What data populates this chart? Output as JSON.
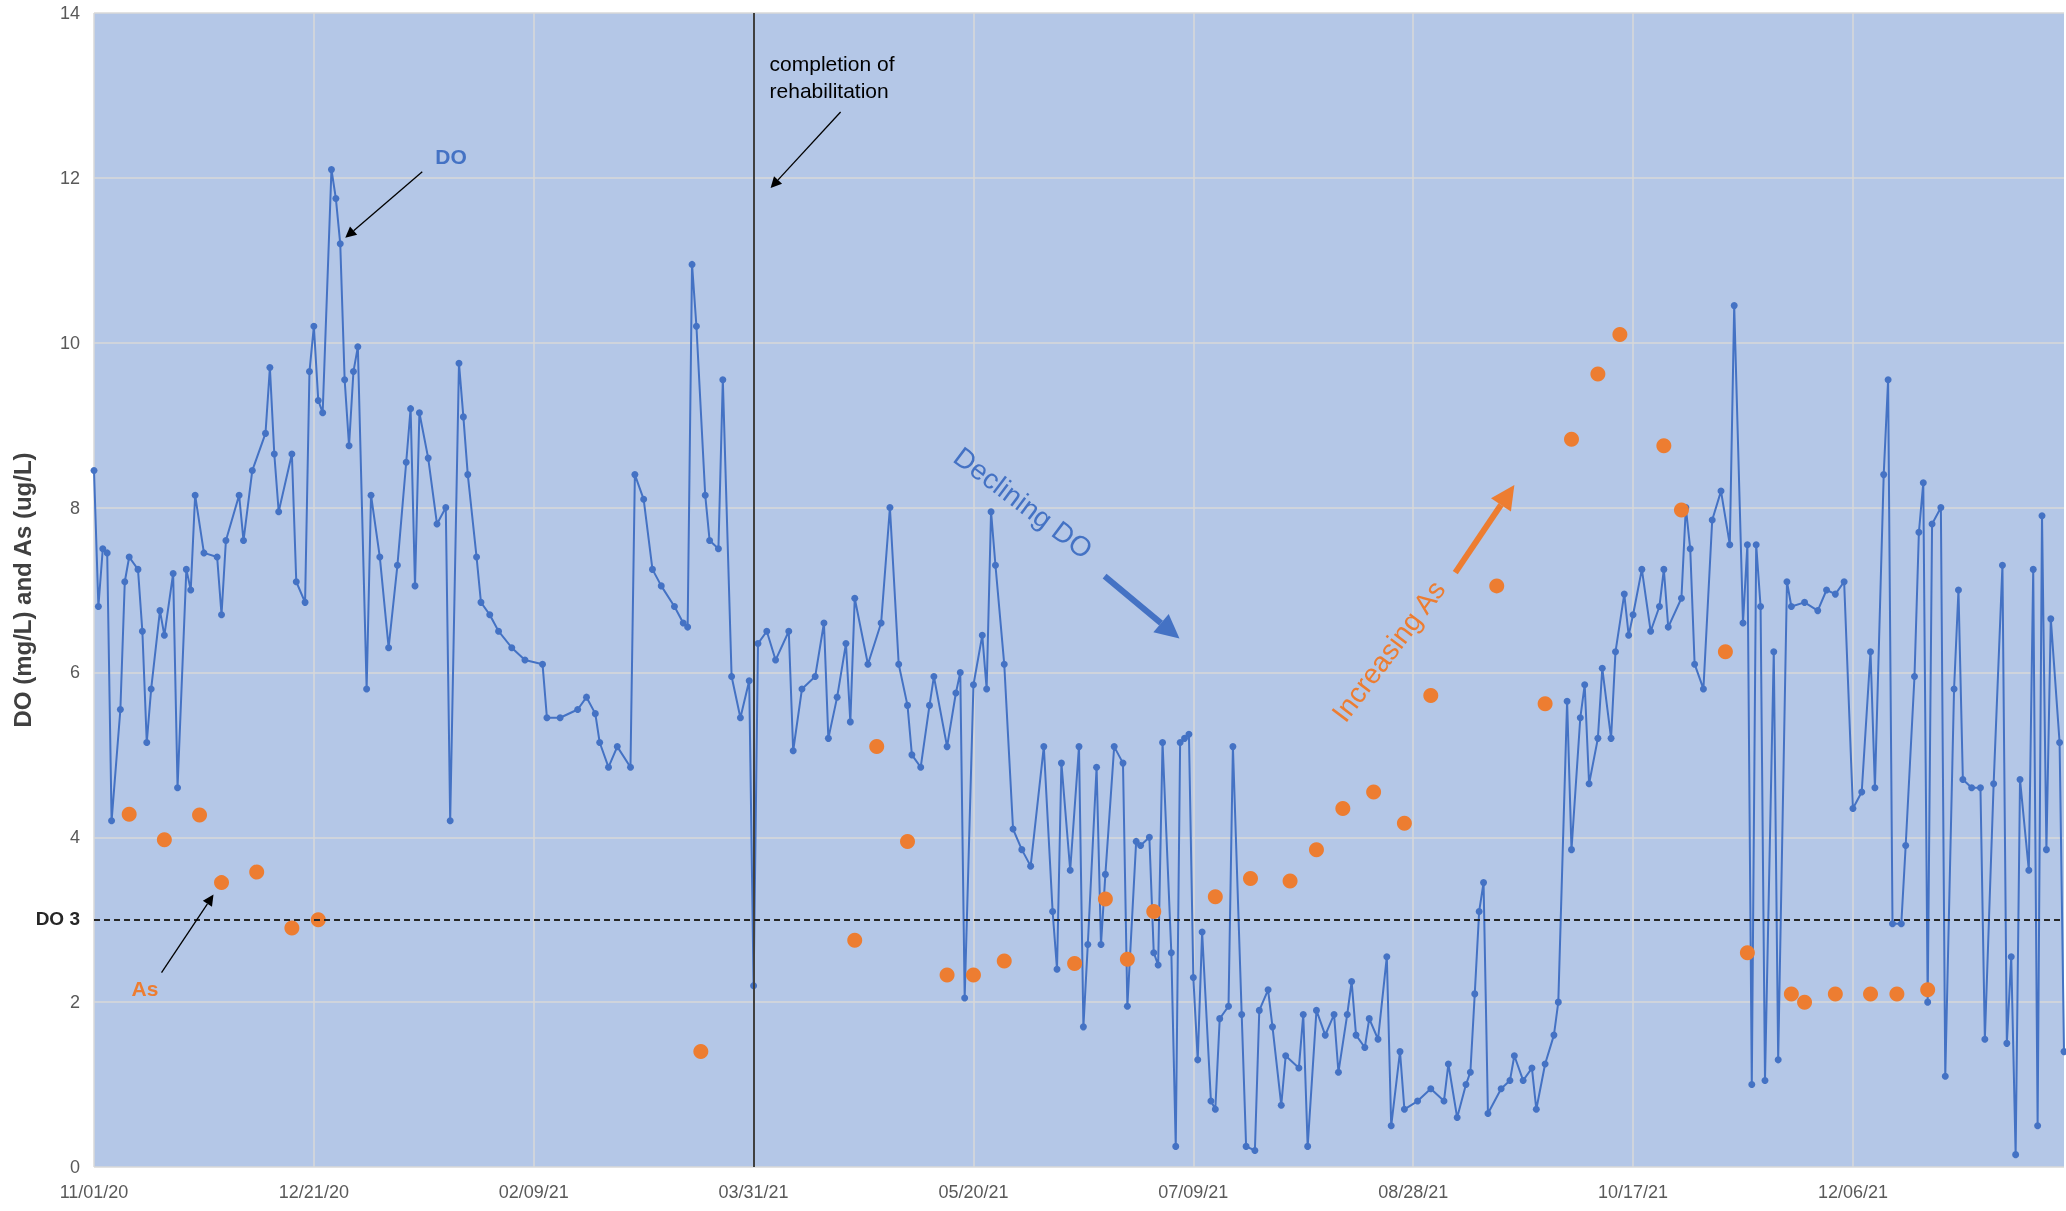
{
  "chart_data": {
    "type": "line",
    "ylabel": "DO (mg/L) and As (ug/L)",
    "xlim": [
      "2020-11-01",
      "2022-01-23"
    ],
    "ylim": [
      0,
      14
    ],
    "yticks": [
      0,
      2,
      4,
      6,
      8,
      10,
      12,
      14
    ],
    "xticks": [
      {
        "value": "2020-11-01",
        "label": "11/01/20"
      },
      {
        "value": "2020-12-21",
        "label": "12/21/20"
      },
      {
        "value": "2021-02-09",
        "label": "02/09/21"
      },
      {
        "value": "2021-03-31",
        "label": "03/31/21"
      },
      {
        "value": "2021-05-20",
        "label": "05/20/21"
      },
      {
        "value": "2021-07-09",
        "label": "07/09/21"
      },
      {
        "value": "2021-08-28",
        "label": "08/28/21"
      },
      {
        "value": "2021-10-17",
        "label": "10/17/21"
      },
      {
        "value": "2021-12-06",
        "label": "12/06/21"
      }
    ],
    "grid": true,
    "marker": "circle",
    "series": [
      {
        "name": "DO",
        "type": "line",
        "color": "#4472c4",
        "x": [
          "2020-11-01",
          "2020-11-02",
          "2020-11-03",
          "2020-11-04",
          "2020-11-05",
          "2020-11-07",
          "2020-11-08",
          "2020-11-09",
          "2020-11-11",
          "2020-11-12",
          "2020-11-13",
          "2020-11-14",
          "2020-11-16",
          "2020-11-17",
          "2020-11-19",
          "2020-11-20",
          "2020-11-22",
          "2020-11-23",
          "2020-11-24",
          "2020-11-26",
          "2020-11-29",
          "2020-11-30",
          "2020-12-01",
          "2020-12-04",
          "2020-12-05",
          "2020-12-07",
          "2020-12-10",
          "2020-12-11",
          "2020-12-12",
          "2020-12-13",
          "2020-12-16",
          "2020-12-17",
          "2020-12-19",
          "2020-12-20",
          "2020-12-21",
          "2020-12-22",
          "2020-12-23",
          "2020-12-25",
          "2020-12-26",
          "2020-12-27",
          "2020-12-28",
          "2020-12-29",
          "2020-12-30",
          "2020-12-31",
          "2021-01-02",
          "2021-01-03",
          "2021-01-05",
          "2021-01-07",
          "2021-01-09",
          "2021-01-11",
          "2021-01-12",
          "2021-01-13",
          "2021-01-14",
          "2021-01-16",
          "2021-01-18",
          "2021-01-20",
          "2021-01-21",
          "2021-01-23",
          "2021-01-24",
          "2021-01-25",
          "2021-01-27",
          "2021-01-28",
          "2021-01-30",
          "2021-02-01",
          "2021-02-04",
          "2021-02-07",
          "2021-02-11",
          "2021-02-12",
          "2021-02-15",
          "2021-02-19",
          "2021-02-21",
          "2021-02-23",
          "2021-02-24",
          "2021-02-26",
          "2021-02-28",
          "2021-03-03",
          "2021-03-04",
          "2021-03-06",
          "2021-03-08",
          "2021-03-10",
          "2021-03-13",
          "2021-03-15",
          "2021-03-16",
          "2021-03-17",
          "2021-03-18",
          "2021-03-20",
          "2021-03-21",
          "2021-03-23",
          "2021-03-24",
          "2021-03-26",
          "2021-03-28",
          "2021-03-30",
          "2021-03-31",
          "2021-04-01",
          "2021-04-03",
          "2021-04-05",
          "2021-04-08",
          "2021-04-09",
          "2021-04-11",
          "2021-04-14",
          "2021-04-16",
          "2021-04-17",
          "2021-04-19",
          "2021-04-21",
          "2021-04-22",
          "2021-04-23",
          "2021-04-26",
          "2021-04-29",
          "2021-05-01",
          "2021-05-03",
          "2021-05-05",
          "2021-05-06",
          "2021-05-08",
          "2021-05-10",
          "2021-05-11",
          "2021-05-14",
          "2021-05-16",
          "2021-05-17",
          "2021-05-18",
          "2021-05-20",
          "2021-05-22",
          "2021-05-23",
          "2021-05-24",
          "2021-05-25",
          "2021-05-27",
          "2021-05-29",
          "2021-05-31",
          "2021-06-02",
          "2021-06-05",
          "2021-06-07",
          "2021-06-08",
          "2021-06-09",
          "2021-06-11",
          "2021-06-13",
          "2021-06-14",
          "2021-06-15",
          "2021-06-17",
          "2021-06-18",
          "2021-06-19",
          "2021-06-21",
          "2021-06-23",
          "2021-06-24",
          "2021-06-26",
          "2021-06-27",
          "2021-06-29",
          "2021-06-30",
          "2021-07-01",
          "2021-07-02",
          "2021-07-04",
          "2021-07-05",
          "2021-07-06",
          "2021-07-07",
          "2021-07-08",
          "2021-07-09",
          "2021-07-10",
          "2021-07-11",
          "2021-07-13",
          "2021-07-14",
          "2021-07-15",
          "2021-07-17",
          "2021-07-18",
          "2021-07-20",
          "2021-07-21",
          "2021-07-23",
          "2021-07-24",
          "2021-07-26",
          "2021-07-27",
          "2021-07-29",
          "2021-07-30",
          "2021-08-02",
          "2021-08-03",
          "2021-08-04",
          "2021-08-06",
          "2021-08-08",
          "2021-08-10",
          "2021-08-11",
          "2021-08-13",
          "2021-08-14",
          "2021-08-15",
          "2021-08-17",
          "2021-08-18",
          "2021-08-20",
          "2021-08-22",
          "2021-08-23",
          "2021-08-25",
          "2021-08-26",
          "2021-08-29",
          "2021-09-01",
          "2021-09-04",
          "2021-09-05",
          "2021-09-07",
          "2021-09-09",
          "2021-09-10",
          "2021-09-11",
          "2021-09-12",
          "2021-09-13",
          "2021-09-14",
          "2021-09-17",
          "2021-09-19",
          "2021-09-20",
          "2021-09-22",
          "2021-09-24",
          "2021-09-25",
          "2021-09-27",
          "2021-09-29",
          "2021-09-30",
          "2021-10-02",
          "2021-10-03",
          "2021-10-05",
          "2021-10-06",
          "2021-10-07",
          "2021-10-09",
          "2021-10-10",
          "2021-10-12",
          "2021-10-13",
          "2021-10-15",
          "2021-10-16",
          "2021-10-17",
          "2021-10-19",
          "2021-10-21",
          "2021-10-23",
          "2021-10-24",
          "2021-10-25",
          "2021-10-28",
          "2021-10-29",
          "2021-10-30",
          "2021-10-31",
          "2021-11-02",
          "2021-11-04",
          "2021-11-06",
          "2021-11-08",
          "2021-11-09",
          "2021-11-11",
          "2021-11-12",
          "2021-11-13",
          "2021-11-14",
          "2021-11-15",
          "2021-11-16",
          "2021-11-18",
          "2021-11-19",
          "2021-11-21",
          "2021-11-22",
          "2021-11-25",
          "2021-11-28",
          "2021-11-30",
          "2021-12-02",
          "2021-12-04",
          "2021-12-06",
          "2021-12-08",
          "2021-12-10",
          "2021-12-11",
          "2021-12-13",
          "2021-12-14",
          "2021-12-15",
          "2021-12-17",
          "2021-12-18",
          "2021-12-20",
          "2021-12-21",
          "2021-12-22",
          "2021-12-23",
          "2021-12-24",
          "2021-12-26",
          "2021-12-27",
          "2021-12-29",
          "2021-12-30",
          "2021-12-31",
          "2022-01-02",
          "2022-01-04",
          "2022-01-05",
          "2022-01-07",
          "2022-01-09",
          "2022-01-10",
          "2022-01-11",
          "2022-01-12",
          "2022-01-13",
          "2022-01-15",
          "2022-01-16",
          "2022-01-17",
          "2022-01-18",
          "2022-01-19",
          "2022-01-20",
          "2022-01-22",
          "2022-01-23"
        ],
        "values": [
          8.45,
          6.8,
          7.5,
          7.45,
          4.2,
          5.55,
          7.1,
          7.4,
          7.25,
          6.5,
          5.15,
          5.8,
          6.75,
          6.45,
          7.2,
          4.6,
          7.25,
          7.0,
          8.15,
          7.45,
          7.4,
          6.7,
          7.6,
          8.15,
          7.6,
          8.45,
          8.9,
          9.7,
          8.65,
          7.95,
          8.65,
          7.1,
          6.85,
          9.65,
          10.2,
          9.3,
          9.15,
          12.1,
          11.75,
          11.2,
          9.55,
          8.75,
          9.65,
          9.95,
          5.8,
          8.15,
          7.4,
          6.3,
          7.3,
          8.55,
          9.2,
          7.05,
          9.15,
          8.6,
          7.8,
          8.0,
          4.2,
          9.75,
          9.1,
          8.4,
          7.4,
          6.85,
          6.7,
          6.5,
          6.3,
          6.15,
          6.1,
          5.45,
          5.45,
          5.55,
          5.7,
          5.5,
          5.15,
          4.85,
          5.1,
          4.85,
          8.4,
          8.1,
          7.25,
          7.05,
          6.8,
          6.6,
          6.55,
          10.95,
          10.2,
          8.15,
          7.6,
          7.5,
          9.55,
          5.95,
          5.45,
          5.9,
          2.2,
          6.35,
          6.5,
          6.15,
          6.5,
          5.05,
          5.8,
          5.95,
          6.6,
          5.2,
          5.7,
          6.35,
          5.4,
          6.9,
          6.1,
          6.6,
          8.0,
          6.1,
          5.6,
          5.0,
          4.85,
          5.6,
          5.95,
          5.1,
          5.75,
          6.0,
          2.05,
          5.85,
          6.45,
          5.8,
          7.95,
          7.3,
          6.1,
          4.1,
          3.85,
          3.65,
          5.1,
          3.1,
          2.4,
          4.9,
          3.6,
          5.1,
          1.7,
          2.7,
          4.85,
          2.7,
          3.55,
          5.1,
          4.9,
          1.95,
          3.95,
          3.9,
          4.0,
          2.6,
          2.45,
          5.15,
          2.6,
          0.25,
          5.15,
          5.2,
          5.25,
          2.3,
          1.3,
          2.85,
          0.8,
          0.7,
          1.8,
          1.95,
          5.1,
          1.85,
          0.25,
          0.2,
          1.9,
          2.15,
          1.7,
          0.75,
          1.35,
          1.2,
          1.85,
          0.25,
          1.9,
          1.6,
          1.85,
          1.15,
          1.85,
          2.25,
          1.6,
          1.45,
          1.8,
          1.55,
          2.55,
          0.5,
          1.4,
          0.7,
          0.8,
          0.95,
          0.8,
          1.25,
          0.6,
          1.0,
          1.15,
          2.1,
          3.1,
          3.45,
          0.65,
          0.95,
          1.05,
          1.35,
          1.05,
          1.2,
          0.7,
          1.25,
          1.6,
          2.0,
          5.65,
          3.85,
          5.45,
          5.85,
          4.65,
          5.2,
          6.05,
          5.2,
          6.25,
          6.95,
          6.45,
          6.7,
          7.25,
          6.5,
          6.8,
          7.25,
          6.55,
          6.9,
          8.0,
          7.5,
          6.1,
          5.8,
          7.85,
          8.2,
          7.55,
          10.45,
          6.6,
          7.55,
          1.0,
          7.55,
          6.8,
          1.05,
          6.25,
          1.3,
          7.1,
          6.8,
          6.85,
          6.75,
          7.0,
          6.95,
          7.1,
          4.35,
          4.55,
          6.25,
          4.6,
          8.4,
          9.55,
          2.95,
          2.95,
          3.9,
          5.95,
          7.7,
          8.3,
          2.0,
          7.8,
          8.0,
          1.1,
          5.8,
          7.0,
          4.7,
          4.6,
          4.6,
          1.55,
          4.65,
          7.3,
          1.5,
          2.55,
          0.15,
          4.7,
          3.6,
          7.25,
          0.5,
          7.9,
          3.85,
          6.65,
          5.15,
          1.4
        ]
      },
      {
        "name": "As",
        "type": "scatter",
        "color": "#ed7d31",
        "x": [
          "2020-11-09",
          "2020-11-17",
          "2020-11-25",
          "2020-11-30",
          "2020-12-08",
          "2020-12-16",
          "2020-12-22",
          "2021-03-19",
          "2021-04-23",
          "2021-04-28",
          "2021-05-05",
          "2021-05-14",
          "2021-05-20",
          "2021-05-27",
          "2021-06-12",
          "2021-06-19",
          "2021-06-24",
          "2021-06-30",
          "2021-07-14",
          "2021-07-22",
          "2021-07-31",
          "2021-08-06",
          "2021-08-12",
          "2021-08-19",
          "2021-08-26",
          "2021-09-01",
          "2021-09-16",
          "2021-09-27",
          "2021-10-03",
          "2021-10-09",
          "2021-10-14",
          "2021-10-24",
          "2021-10-28",
          "2021-11-07",
          "2021-11-12",
          "2021-11-22",
          "2021-11-25",
          "2021-12-02",
          "2021-12-10",
          "2021-12-16",
          "2021-12-23"
        ],
        "values": [
          4.28,
          3.97,
          4.27,
          3.45,
          3.58,
          2.9,
          3.0,
          1.4,
          2.75,
          5.1,
          3.95,
          2.33,
          2.33,
          2.5,
          2.47,
          3.25,
          2.52,
          3.1,
          3.28,
          3.5,
          3.47,
          3.85,
          4.35,
          4.55,
          4.17,
          5.72,
          7.05,
          5.62,
          8.83,
          9.62,
          10.1,
          8.75,
          7.97,
          6.25,
          2.6,
          2.1,
          2.0,
          2.1,
          2.1,
          2.1,
          2.15
        ]
      }
    ],
    "ref_lines": [
      {
        "axis": "x",
        "value": "2021-03-31",
        "label": "completion of rehabilitation",
        "color": "#404040",
        "line_style": "solid"
      },
      {
        "axis": "y",
        "value": 3,
        "label": "DO 3",
        "color": "#262626",
        "line_style": "dashed"
      }
    ],
    "annotations": [
      "Declining DO",
      "Increasing As"
    ]
  }
}
